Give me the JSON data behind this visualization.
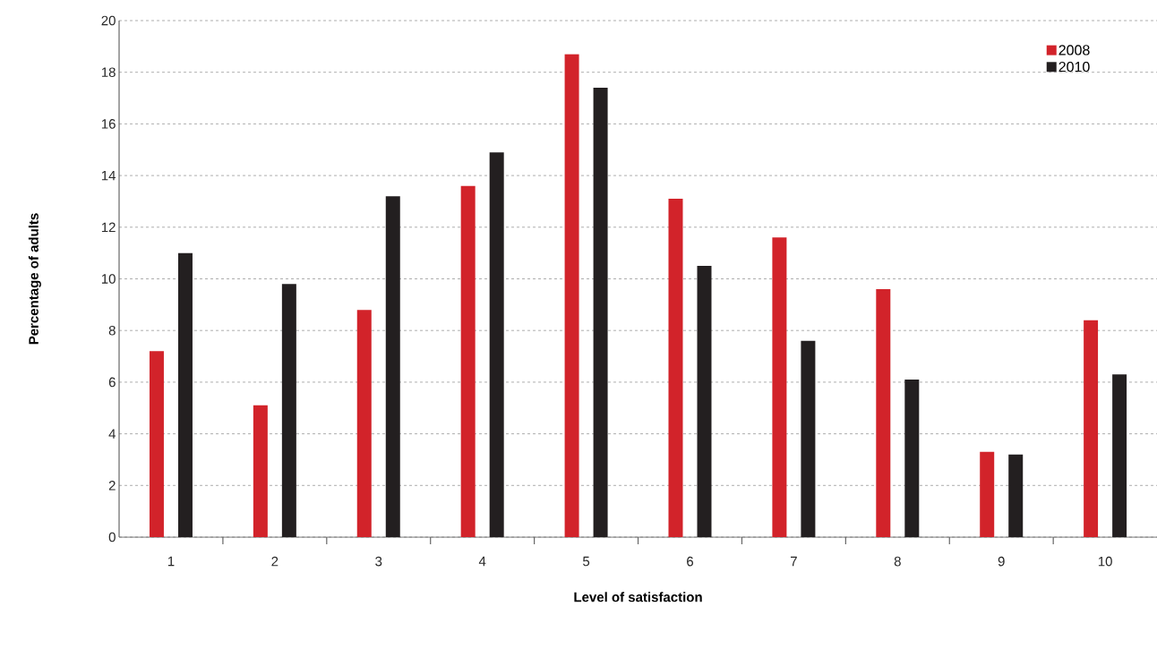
{
  "chart_data": {
    "type": "bar",
    "xlabel": "Level of satisfaction",
    "ylabel": "Percentage of adults",
    "categories": [
      "1",
      "2",
      "3",
      "4",
      "5",
      "6",
      "7",
      "8",
      "9",
      "10"
    ],
    "series": [
      {
        "name": "2008",
        "color": "#d2232a",
        "values": [
          7.2,
          5.1,
          8.8,
          13.6,
          18.7,
          13.1,
          11.6,
          9.6,
          3.3,
          8.4
        ]
      },
      {
        "name": "2010",
        "color": "#231f20",
        "values": [
          11.0,
          9.8,
          13.2,
          14.9,
          17.4,
          10.5,
          7.6,
          6.1,
          3.2,
          6.3
        ]
      }
    ],
    "ylim": [
      0,
      20
    ],
    "yticks": [
      0,
      2,
      4,
      6,
      8,
      10,
      12,
      14,
      16,
      18,
      20
    ],
    "grid": "y",
    "legend": "top right"
  }
}
